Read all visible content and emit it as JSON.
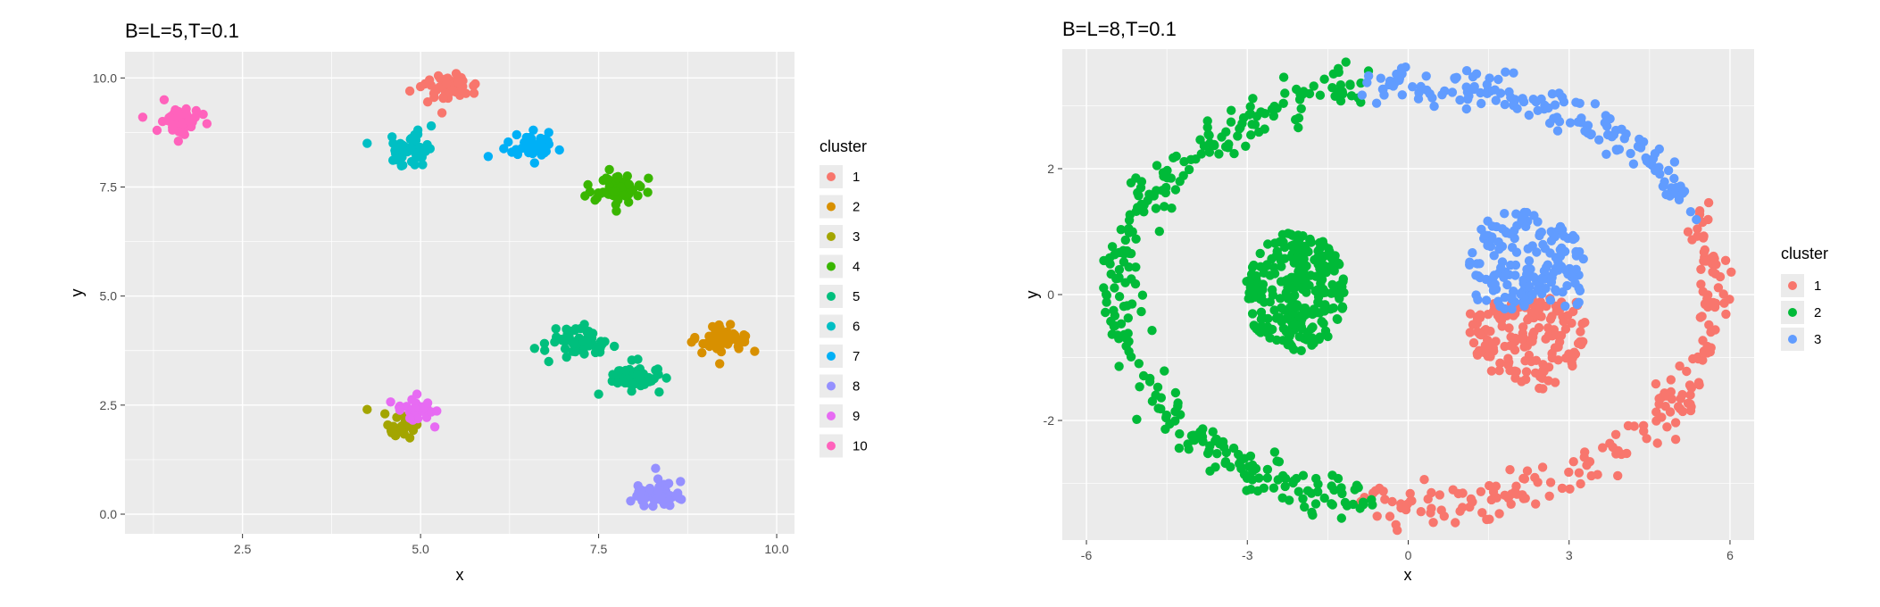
{
  "chart_data": [
    {
      "type": "scatter",
      "title": "B=L=5,T=0.1",
      "xlabel": "x",
      "ylabel": "y",
      "xlim": [
        0.85,
        10.25
      ],
      "ylim": [
        -0.45,
        10.6
      ],
      "xticks": [
        2.5,
        5.0,
        7.5,
        10.0
      ],
      "xtick_labels": [
        "2.5",
        "5.0",
        "7.5",
        "10.0"
      ],
      "yticks": [
        0.0,
        2.5,
        5.0,
        7.5,
        10.0
      ],
      "ytick_labels": [
        "0.0",
        "2.5",
        "5.0",
        "7.5",
        "10.0"
      ],
      "grid": true,
      "legend_title": "cluster",
      "legend_position": "right",
      "series": [
        {
          "name": "1",
          "color": "#F8766D",
          "cx": 5.4,
          "cy": 9.75,
          "sx": 0.17,
          "sy": 0.13,
          "n": 55,
          "values": [
            [
              5.25,
              10.05
            ],
            [
              5.0,
              9.8
            ],
            [
              5.1,
              9.45
            ],
            [
              5.5,
              10.1
            ],
            [
              5.75,
              9.65
            ],
            [
              5.3,
              9.2
            ],
            [
              4.85,
              9.7
            ]
          ]
        },
        {
          "name": "2",
          "color": "#D89000",
          "cx": 9.2,
          "cy": 4.0,
          "sx": 0.17,
          "sy": 0.14,
          "n": 55,
          "values": [
            [
              8.85,
              4.05
            ],
            [
              9.55,
              3.95
            ],
            [
              9.2,
              3.45
            ],
            [
              9.35,
              4.35
            ],
            [
              8.95,
              3.7
            ],
            [
              9.1,
              4.3
            ]
          ]
        },
        {
          "name": "3",
          "color": "#A3A500",
          "cx": 4.75,
          "cy": 2.05,
          "sx": 0.12,
          "sy": 0.14,
          "n": 30,
          "values": [
            [
              4.25,
              2.4
            ],
            [
              4.65,
              1.8
            ],
            [
              4.85,
              1.75
            ],
            [
              4.5,
              2.3
            ],
            [
              4.95,
              2.05
            ]
          ]
        },
        {
          "name": "4",
          "color": "#39B600",
          "cx": 7.75,
          "cy": 7.45,
          "sx": 0.17,
          "sy": 0.14,
          "n": 55,
          "values": [
            [
              7.35,
              7.55
            ],
            [
              7.65,
              7.9
            ],
            [
              8.2,
              7.7
            ],
            [
              7.75,
              6.95
            ],
            [
              8.05,
              7.3
            ],
            [
              7.45,
              7.2
            ]
          ]
        },
        {
          "name": "5",
          "color": "#00BF7D",
          "cx": 7.2,
          "cy": 3.95,
          "sx": 0.2,
          "sy": 0.16,
          "n": 55,
          "values": [
            [
              6.6,
              3.8
            ],
            [
              6.8,
              3.5
            ],
            [
              7.3,
              4.35
            ],
            [
              7.55,
              3.9
            ],
            [
              6.9,
              4.25
            ],
            [
              7.05,
              3.6
            ]
          ]
        },
        {
          "name": "5",
          "color": "#00BF7D",
          "cx": 8.0,
          "cy": 3.15,
          "sx": 0.17,
          "sy": 0.14,
          "n": 45,
          "values": [
            [
              7.5,
              2.75
            ],
            [
              8.35,
              2.8
            ],
            [
              8.05,
              3.55
            ],
            [
              7.7,
              3.2
            ],
            [
              8.3,
              3.3
            ]
          ]
        },
        {
          "name": "6",
          "color": "#00BFC4",
          "cx": 4.85,
          "cy": 8.35,
          "sx": 0.13,
          "sy": 0.15,
          "n": 45,
          "values": [
            [
              4.25,
              8.5
            ],
            [
              5.15,
              8.9
            ],
            [
              4.75,
              8.0
            ],
            [
              4.6,
              8.65
            ],
            [
              5.0,
              8.2
            ]
          ]
        },
        {
          "name": "7",
          "color": "#00B0F6",
          "cx": 6.6,
          "cy": 8.45,
          "sx": 0.15,
          "sy": 0.12,
          "n": 45,
          "values": [
            [
              5.95,
              8.2
            ],
            [
              6.35,
              8.7
            ],
            [
              6.95,
              8.35
            ],
            [
              6.6,
              8.05
            ],
            [
              6.8,
              8.75
            ]
          ]
        },
        {
          "name": "8",
          "color": "#9590FF",
          "cx": 8.3,
          "cy": 0.45,
          "sx": 0.16,
          "sy": 0.14,
          "n": 55,
          "values": [
            [
              8.3,
              1.05
            ],
            [
              7.95,
              0.3
            ],
            [
              8.65,
              0.75
            ],
            [
              8.5,
              0.2
            ],
            [
              8.1,
              0.55
            ]
          ]
        },
        {
          "name": "9",
          "color": "#E76BF3",
          "cx": 4.95,
          "cy": 2.35,
          "sx": 0.12,
          "sy": 0.13,
          "n": 30,
          "values": [
            [
              5.2,
              2.0
            ],
            [
              4.95,
              2.75
            ],
            [
              4.7,
              2.45
            ],
            [
              5.1,
              2.55
            ],
            [
              4.85,
              2.2
            ]
          ]
        },
        {
          "name": "10",
          "color": "#FF62BC",
          "cx": 1.65,
          "cy": 9.0,
          "sx": 0.13,
          "sy": 0.16,
          "n": 55,
          "values": [
            [
              1.1,
              9.1
            ],
            [
              1.4,
              9.5
            ],
            [
              2.0,
              8.95
            ],
            [
              1.6,
              8.55
            ],
            [
              1.85,
              9.25
            ],
            [
              1.3,
              8.8
            ]
          ]
        }
      ]
    },
    {
      "type": "scatter",
      "title": "B=L=8,T=0.1",
      "xlabel": "x",
      "ylabel": "y",
      "xlim": [
        -6.45,
        6.45
      ],
      "ylim": [
        -3.9,
        3.9
      ],
      "xticks": [
        -6,
        -3,
        0,
        3,
        6
      ],
      "xtick_labels": [
        "-6",
        "-3",
        "0",
        "3",
        "6"
      ],
      "yticks": [
        -2,
        0,
        2
      ],
      "ytick_labels": [
        "-2",
        "0",
        "2"
      ],
      "grid": true,
      "legend_title": "cluster",
      "legend_position": "right",
      "series": [
        {
          "name": "1",
          "color": "#F8766D",
          "ring": {
            "rx": 5.6,
            "ry": 3.35,
            "cx": 0.15,
            "cy": 0.0,
            "from": -100,
            "to": 22,
            "n": 190,
            "jitter": 0.18
          },
          "disc": {
            "cx": 2.2,
            "cy": -0.45,
            "r": 1.1,
            "ylo": -1.5,
            "yhi": -0.05,
            "n": 160
          }
        },
        {
          "name": "2",
          "color": "#00BA38",
          "ring": {
            "rx": 5.6,
            "ry": 3.35,
            "cx": 0.15,
            "cy": 0.0,
            "from": 100,
            "to": 262,
            "n": 300,
            "jitter": 0.18
          },
          "disc": {
            "cx": -2.1,
            "cy": 0.05,
            "r": 0.95,
            "n": 260
          }
        },
        {
          "name": "3",
          "color": "#619CFF",
          "ring": {
            "rx": 5.6,
            "ry": 3.35,
            "cx": 0.15,
            "cy": 0.0,
            "from": 22,
            "to": 100,
            "n": 150,
            "jitter": 0.15
          },
          "disc": {
            "cx": 2.2,
            "cy": 0.35,
            "r": 1.1,
            "ylo": -0.25,
            "yhi": 1.35,
            "n": 160
          }
        }
      ]
    }
  ]
}
